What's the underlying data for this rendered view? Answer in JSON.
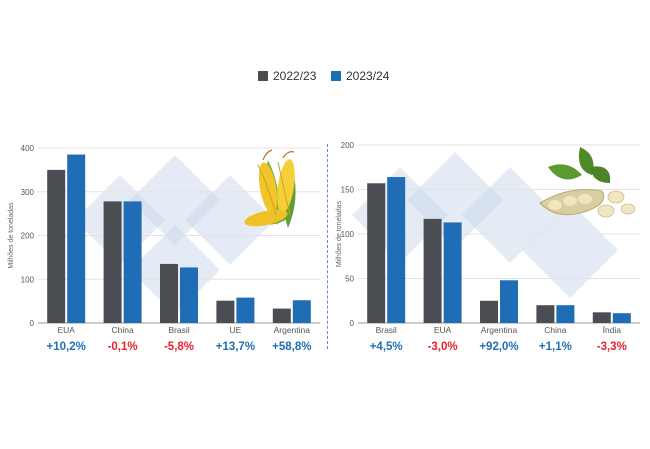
{
  "legend": {
    "series_2022": "2022/23",
    "series_2023": "2023/24"
  },
  "colors": {
    "series_2022": "#4a4d52",
    "series_2023": "#1f6eb5",
    "positive_change": "#1f6eb5",
    "negative_change": "#e8212b",
    "watermark": "#c5d3e6"
  },
  "chart_data": [
    {
      "type": "bar",
      "title": "",
      "ylabel": "Milhões de toneladas",
      "xlabel": "",
      "ylim": [
        0,
        400
      ],
      "yticks": [
        0,
        100,
        200,
        300,
        400
      ],
      "categories": [
        "EUA",
        "China",
        "Brasil",
        "UE",
        "Argentina"
      ],
      "series": [
        {
          "name": "2022/23",
          "values": [
            350,
            278,
            135,
            51,
            33
          ]
        },
        {
          "name": "2023/24",
          "values": [
            385,
            278,
            127,
            58,
            52
          ]
        }
      ],
      "changes": [
        "+10,2%",
        "-0,1%",
        "-5,8%",
        "+13,7%",
        "+58,8%"
      ],
      "grid": true,
      "legend": "top-center",
      "illustration": "corn-icon"
    },
    {
      "type": "bar",
      "title": "",
      "ylabel": "Milhões de toneladas",
      "xlabel": "",
      "ylim": [
        0,
        200
      ],
      "yticks": [
        0,
        50,
        100,
        150,
        200
      ],
      "categories": [
        "Brasil",
        "EUA",
        "Argentina",
        "China",
        "Índia"
      ],
      "series": [
        {
          "name": "2022/23",
          "values": [
            157,
            117,
            25,
            20,
            12
          ]
        },
        {
          "name": "2023/24",
          "values": [
            164,
            113,
            48,
            20,
            11
          ]
        }
      ],
      "changes": [
        "+4,5%",
        "-3,0%",
        "+92,0%",
        "+1,1%",
        "-3,3%"
      ],
      "grid": true,
      "legend": "top-center",
      "illustration": "soybean-icon"
    }
  ]
}
